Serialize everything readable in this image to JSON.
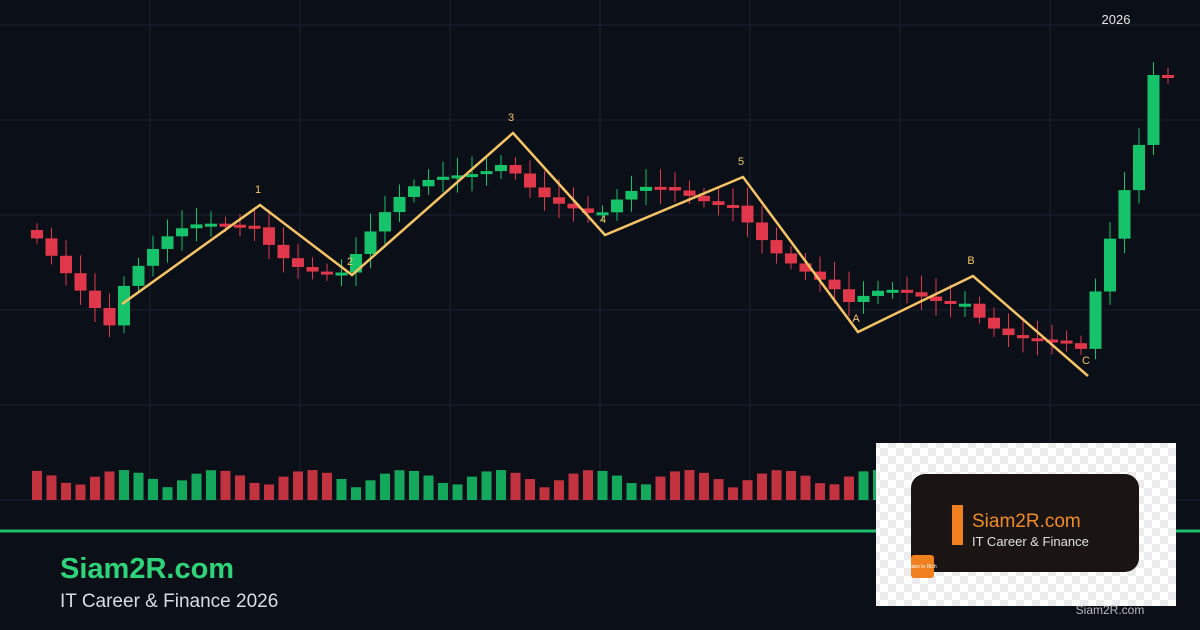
{
  "chart_year": "2026",
  "wave_labels": [
    "1",
    "2",
    "3",
    "4",
    "5",
    "A",
    "B",
    "C"
  ],
  "brand": {
    "name": "Siam2R.com",
    "tagline": "IT Career & Finance 2026"
  },
  "logo": {
    "name": "Siam2R.com",
    "tagline": "IT Career & Finance",
    "badge": "Siam to Rich"
  },
  "watermark": "Siam2R.com"
}
